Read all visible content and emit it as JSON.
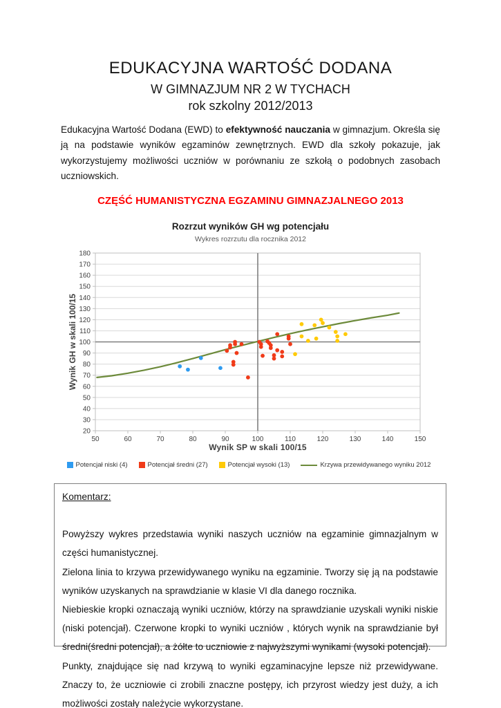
{
  "header": {
    "title": "EDUKACYJNA WARTOŚĆ DODANA",
    "subtitle1": "W GIMNAZJUM NR 2 W TYCHACH",
    "subtitle2": "rok szkolny 2012/2013"
  },
  "intro": {
    "part1": "Edukacyjna Wartość Dodana (EWD) to ",
    "bold": "efektywność nauczania",
    "part2": " w gimnazjum. Określa się ją na podstawie wyników egzaminów zewnętrznych. EWD dla szkoły pokazuje, jak wykorzystujemy możliwości uczniów w porównaniu ze szkołą o podobnych zasobach uczniowskich."
  },
  "section_heading": {
    "text": "CZĘŚĆ HUMANISTYCZNA EGZAMINU GIMNAZJALNEGO 2013",
    "color": "#ff0000"
  },
  "chart_data": {
    "type": "scatter",
    "title": "Rozrzut wyników GH wg potencjału",
    "subtitle": "Wykres rozrzutu dla rocznika 2012",
    "xlabel": "Wynik SP w skali 100/15",
    "ylabel": "Wynik GH w skali 100/15",
    "xlim": [
      50,
      150
    ],
    "ylim": [
      20,
      180
    ],
    "xticks": [
      50,
      60,
      70,
      80,
      90,
      100,
      110,
      120,
      130,
      140,
      150
    ],
    "yticks": [
      20,
      30,
      40,
      50,
      60,
      70,
      80,
      90,
      100,
      110,
      120,
      130,
      140,
      150,
      160,
      170,
      180
    ],
    "grid": "horizontal",
    "reference_lines": {
      "x": 100,
      "y": 100,
      "color": "#7f7f7f"
    },
    "legend_position": "bottom",
    "series": [
      {
        "name": "Potencjał niski (4)",
        "color": "#2e9bf0",
        "points": [
          [
            76,
            78
          ],
          [
            78.5,
            75
          ],
          [
            82.5,
            85.5
          ],
          [
            88.5,
            76.5
          ]
        ]
      },
      {
        "name": "Potencjał średni (27)",
        "color": "#f03b19",
        "points": [
          [
            90.5,
            92
          ],
          [
            91.5,
            97
          ],
          [
            91.5,
            95
          ],
          [
            92.5,
            82
          ],
          [
            92.5,
            79.5
          ],
          [
            93,
            100
          ],
          [
            93,
            98
          ],
          [
            93.5,
            90
          ],
          [
            95,
            98
          ],
          [
            97,
            68
          ],
          [
            100.5,
            100
          ],
          [
            101,
            98
          ],
          [
            101,
            95.5
          ],
          [
            101.5,
            87.5
          ],
          [
            103,
            100.5
          ],
          [
            103.5,
            99
          ],
          [
            104,
            97
          ],
          [
            104,
            94.5
          ],
          [
            105,
            88
          ],
          [
            105,
            85
          ],
          [
            106,
            107
          ],
          [
            106,
            92.5
          ],
          [
            107.5,
            91
          ],
          [
            107.5,
            87
          ],
          [
            109.5,
            105
          ],
          [
            109.5,
            103
          ],
          [
            110,
            98
          ]
        ]
      },
      {
        "name": "Potencjał wysoki (13)",
        "color": "#ffca08",
        "points": [
          [
            111.5,
            89
          ],
          [
            113.5,
            116
          ],
          [
            113.5,
            105
          ],
          [
            115.5,
            101
          ],
          [
            117.5,
            115
          ],
          [
            118,
            103
          ],
          [
            119.5,
            120
          ],
          [
            120,
            117
          ],
          [
            122,
            113
          ],
          [
            124,
            109
          ],
          [
            124.5,
            105
          ],
          [
            124.5,
            101
          ],
          [
            127,
            107
          ]
        ]
      }
    ],
    "curve": {
      "name": "Krzywa przewidywanego wyniku 2012",
      "color": "#6c8a3a",
      "points": [
        [
          50.5,
          68
        ],
        [
          55,
          69.5
        ],
        [
          60,
          71.8
        ],
        [
          65,
          74.5
        ],
        [
          70,
          77.6
        ],
        [
          75,
          81.2
        ],
        [
          80,
          85
        ],
        [
          85,
          89
        ],
        [
          90,
          93
        ],
        [
          95,
          96.8
        ],
        [
          100,
          100.4
        ],
        [
          105,
          104
        ],
        [
          110,
          107.4
        ],
        [
          115,
          110.6
        ],
        [
          120,
          113.6
        ],
        [
          125,
          116.5
        ],
        [
          130,
          119.2
        ],
        [
          135,
          121.7
        ],
        [
          140,
          124
        ],
        [
          143.5,
          126
        ]
      ]
    },
    "style": {
      "grid_color": "#d9d9d9",
      "border_color": "#bfbfbf",
      "tick_color": "#bfbfbf",
      "tick_label_color": "#404040",
      "point_radius": 2.9
    }
  },
  "comment": {
    "heading": "Komentarz:",
    "paragraphs": [
      "Powyższy wykres  przedstawia wyniki naszych uczniów na egzaminie gimnazjalnym  w części humanistycznej.",
      "Zielona linia to krzywa przewidywanego wyniku na egzaminie. Tworzy się ją na podstawie wyników uzyskanych na sprawdzianie w klasie VI dla danego rocznika.",
      "Niebieskie kropki oznaczają wyniki uczniów, którzy na sprawdzianie uzyskali wyniki niskie (niski potencjał). Czerwone kropki to wyniki uczniów , których wynik na sprawdzianie był średni(średni potencjał), a żółte to uczniowie z najwyższymi wynikami (wysoki potencjał).",
      "Punkty, znajdujące się nad krzywą to wyniki egzaminacyjne lepsze niż przewidywane. Znaczy to, że uczniowie ci zrobili znaczne postępy, ich przyrost wiedzy jest duży, a ich możliwości zostały należycie wykorzystane."
    ]
  }
}
